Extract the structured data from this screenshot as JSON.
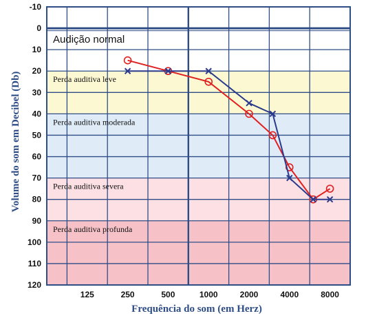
{
  "chart_data": {
    "type": "line",
    "xlabel": "Frequência do som (em Herz)",
    "ylabel": "Volume do som em Decibel (Db)",
    "x_categories": [
      "125",
      "250",
      "500",
      "1000",
      "2000",
      "4000",
      "8000"
    ],
    "y_ticks": [
      "-10",
      "0",
      "10",
      "20",
      "30",
      "40",
      "50",
      "60",
      "70",
      "80",
      "90",
      "100",
      "110",
      "120"
    ],
    "ylim": [
      -10,
      120
    ],
    "y_inverted": true,
    "grid": true,
    "zones": [
      {
        "label": "Audição normal",
        "from": 0,
        "to": 20,
        "color": "#ffffff"
      },
      {
        "label": "Perda auditiva leve",
        "from": 20,
        "to": 40,
        "color": "#fbf8d2"
      },
      {
        "label": "Perda auditiva moderada",
        "from": 40,
        "to": 70,
        "color": "#dfecf8"
      },
      {
        "label": "Perda auditiva severa",
        "from": 70,
        "to": 90,
        "color": "#fde0e3"
      },
      {
        "label": "Perda auditiva profunda",
        "from": 90,
        "to": 120,
        "color": "#f6c2c8"
      }
    ],
    "series": [
      {
        "marker": "o",
        "color": "#e02020",
        "points": [
          {
            "x": 250,
            "y": 15
          },
          {
            "x": 500,
            "y": 20
          },
          {
            "x": 1000,
            "y": 25
          },
          {
            "x": 2000,
            "y": 40
          },
          {
            "x": 3000,
            "y": 50
          },
          {
            "x": 4000,
            "y": 65
          },
          {
            "x": 6000,
            "y": 80
          },
          {
            "x": 8000,
            "y": 75
          }
        ]
      },
      {
        "marker": "x",
        "color": "#2a3a8c",
        "points": [
          {
            "x": 250,
            "y": 20
          },
          {
            "x": 500,
            "y": 20
          },
          {
            "x": 1000,
            "y": 20
          },
          {
            "x": 2000,
            "y": 35
          },
          {
            "x": 3000,
            "y": 40
          },
          {
            "x": 4000,
            "y": 70
          },
          {
            "x": 6000,
            "y": 80
          },
          {
            "x": 8000,
            "y": 80
          }
        ]
      }
    ]
  }
}
